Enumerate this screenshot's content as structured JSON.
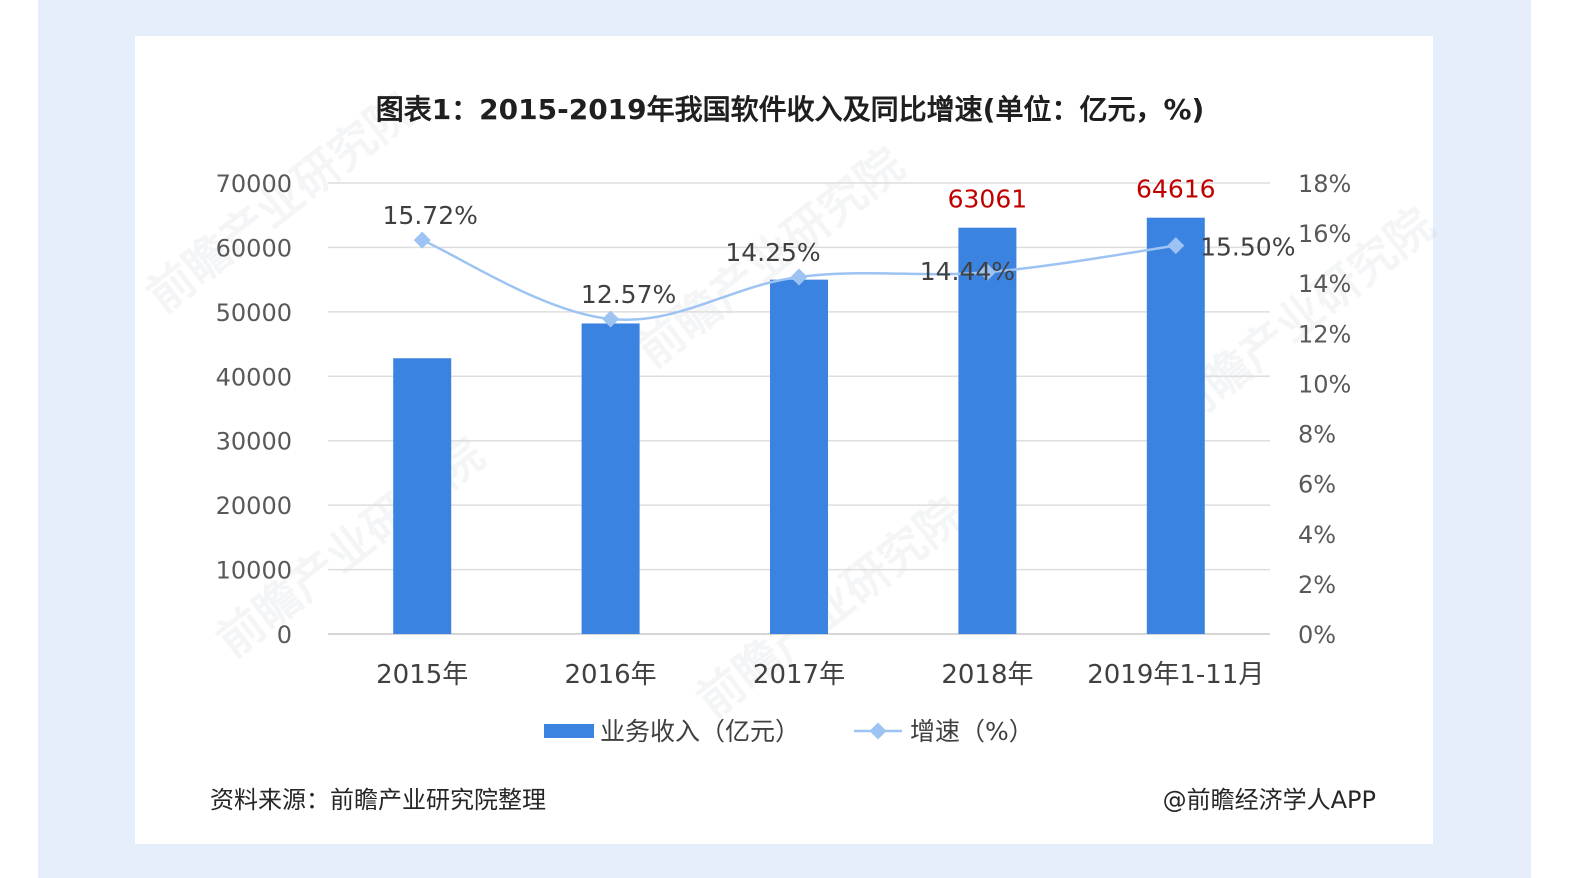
{
  "chart_data": {
    "type": "bar",
    "title": "图表1：2015-2019年我国软件收入及同比增速(单位：亿元，%)",
    "categories": [
      "2015年",
      "2016年",
      "2017年",
      "2018年",
      "2019年1-11月"
    ],
    "series": [
      {
        "name": "业务收入（亿元）",
        "type": "bar",
        "axis": "left",
        "color": "#3b83e0",
        "values": [
          42800,
          48200,
          55000,
          63061,
          64616
        ],
        "data_labels": [
          "",
          "",
          "",
          "63061",
          "64616"
        ]
      },
      {
        "name": "增速（%）",
        "type": "line",
        "axis": "right",
        "color": "#9dc3f2",
        "values": [
          15.72,
          12.57,
          14.25,
          14.44,
          15.5
        ],
        "data_labels": [
          "15.72%",
          "12.57%",
          "14.25%",
          "14.44%",
          "15.50%"
        ]
      }
    ],
    "y_left": {
      "min": 0,
      "max": 70000,
      "step": 10000,
      "ticks": [
        "0",
        "10000",
        "20000",
        "30000",
        "40000",
        "50000",
        "60000",
        "70000"
      ]
    },
    "y_right": {
      "min": 0,
      "max": 18,
      "step": 2,
      "ticks": [
        "0%",
        "2%",
        "4%",
        "6%",
        "8%",
        "10%",
        "12%",
        "14%",
        "16%",
        "18%"
      ]
    },
    "grid": true,
    "legend_position": "bottom"
  },
  "footer": {
    "source": "资料来源：前瞻产业研究院整理",
    "credit": "@前瞻经济学人APP"
  },
  "watermark": "前瞻产业研究院"
}
